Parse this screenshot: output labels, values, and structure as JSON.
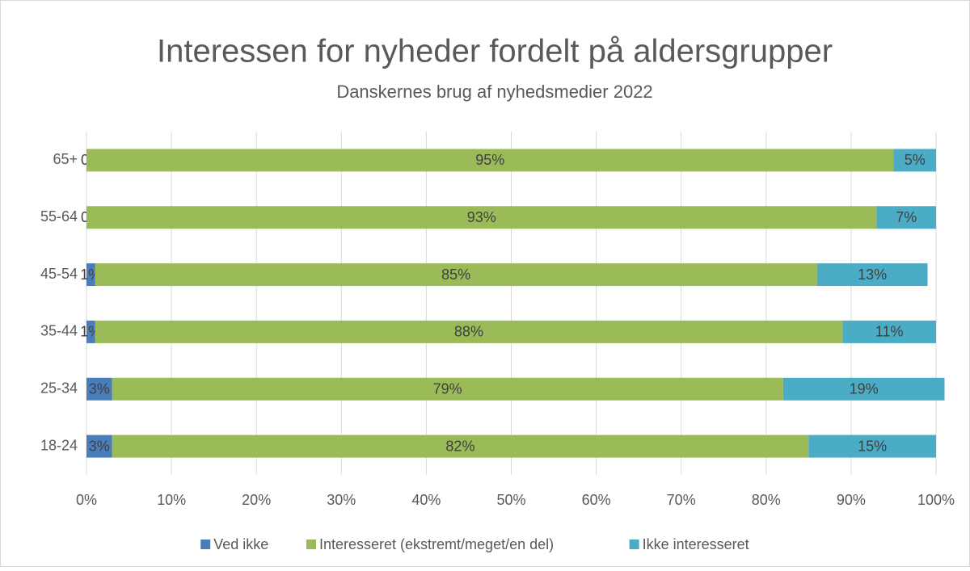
{
  "chart_data": {
    "type": "stacked_barh",
    "title": "Interessen for nyheder fordelt på aldersgrupper",
    "subtitle": "Danskernes brug af nyhedsmedier 2022",
    "categories": [
      "65+",
      "55-64",
      "45-54",
      "35-44",
      "25-34",
      "18-24"
    ],
    "series": [
      {
        "name": "Ved ikke",
        "color": "#4a7ebb",
        "values": [
          0,
          0,
          1,
          1,
          3,
          3
        ],
        "value_labels": [
          "0%",
          "0%",
          "1%",
          "1%",
          "3%",
          "3%"
        ]
      },
      {
        "name": "Interesseret (ekstremt/meget/en del)",
        "color": "#9bbb59",
        "values": [
          95,
          93,
          85,
          88,
          79,
          82
        ],
        "value_labels": [
          "95%",
          "93%",
          "85%",
          "88%",
          "79%",
          "82%"
        ]
      },
      {
        "name": "Ikke interesseret",
        "color": "#4bacc6",
        "values": [
          5,
          7,
          13,
          11,
          19,
          15
        ],
        "value_labels": [
          "5%",
          "7%",
          "13%",
          "11%",
          "19%",
          "15%"
        ]
      }
    ],
    "xlim": [
      0,
      100
    ],
    "xticks": [
      {
        "value": 0,
        "label": "0%"
      },
      {
        "value": 10,
        "label": "10%"
      },
      {
        "value": 20,
        "label": "20%"
      },
      {
        "value": 30,
        "label": "30%"
      },
      {
        "value": 40,
        "label": "40%"
      },
      {
        "value": 50,
        "label": "50%"
      },
      {
        "value": 60,
        "label": "60%"
      },
      {
        "value": 70,
        "label": "70%"
      },
      {
        "value": 80,
        "label": "80%"
      },
      {
        "value": 90,
        "label": "90%"
      },
      {
        "value": 100,
        "label": "100%"
      }
    ],
    "grid": true,
    "legend": "bottom"
  }
}
